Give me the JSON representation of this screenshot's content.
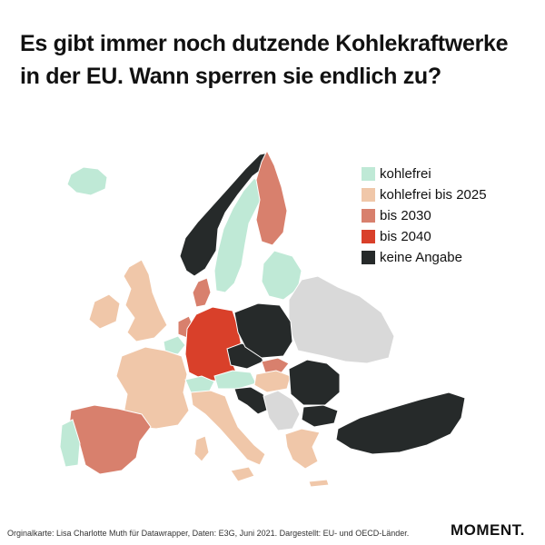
{
  "title": "Es gibt immer noch dutzende  Kohlekraftwerke in der EU. Wann sperren sie endlich zu?",
  "legend": [
    {
      "label": "kohlefrei",
      "color": "#bfe9d6"
    },
    {
      "label": "kohlefrei bis 2025",
      "color": "#f0c7a9"
    },
    {
      "label": "bis 2030",
      "color": "#d8806d"
    },
    {
      "label": "bis 2040",
      "color": "#d9402a"
    },
    {
      "label": "keine Angabe",
      "color": "#262a2a"
    }
  ],
  "colors": {
    "kohlefrei": "#bfe9d6",
    "bis_2025": "#f0c7a9",
    "bis_2030": "#d8806d",
    "bis_2040": "#d9402a",
    "keine_angabe": "#262a2a",
    "not_included": "#d9d9d9"
  },
  "footer": "Orginalkarte: Lisa Charlotte Muth für Datawrapper, Daten: E3G, Juni 2021. Dargestellt: EU- und OECD-Länder.",
  "logo": "MOMENT."
}
